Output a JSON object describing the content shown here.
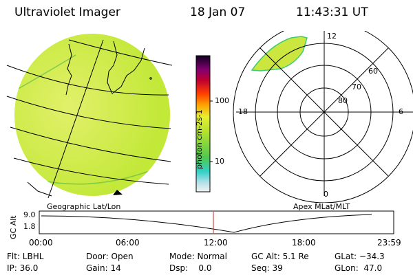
{
  "header": {
    "title": "Ultraviolet Imager",
    "date": "18 Jan 07",
    "time": "11:43:31 UT"
  },
  "colorbar": {
    "unit_label": "photon cm-2s-1",
    "ticks": [
      "100",
      "10"
    ]
  },
  "polar": {
    "mlt_labels": {
      "top": "12",
      "bottom": "0",
      "left": "18",
      "right": "6"
    },
    "lat_labels": [
      "60",
      "70",
      "80"
    ],
    "projection_label": "Apex MLat/MLT"
  },
  "geo": {
    "projection_label": "Geographic Lat/Lon"
  },
  "altitude_plot": {
    "axis_label": "GC Alt",
    "y_ticks": [
      "9.0",
      "1.8"
    ],
    "x_ticks": [
      "00:00",
      "06:00",
      "12:00",
      "18:00",
      "23:59"
    ]
  },
  "info": {
    "filter": "Flt: LBHL",
    "ip": "IP: 36.0",
    "door": "Door: Open",
    "gain": "Gain: 14",
    "mode": "Mode: Normal",
    "dsp": "Dsp:    0.0",
    "gc_alt": "GC Alt: 5.1 Re",
    "seq": "Seq: 39",
    "glat": "GLat: −34.3",
    "glon": "GLon:  47.0"
  },
  "colors": {
    "aurora_fill": "#b8e830",
    "bright_fill": "#e6f070",
    "current_time_marker": "#d02020"
  }
}
